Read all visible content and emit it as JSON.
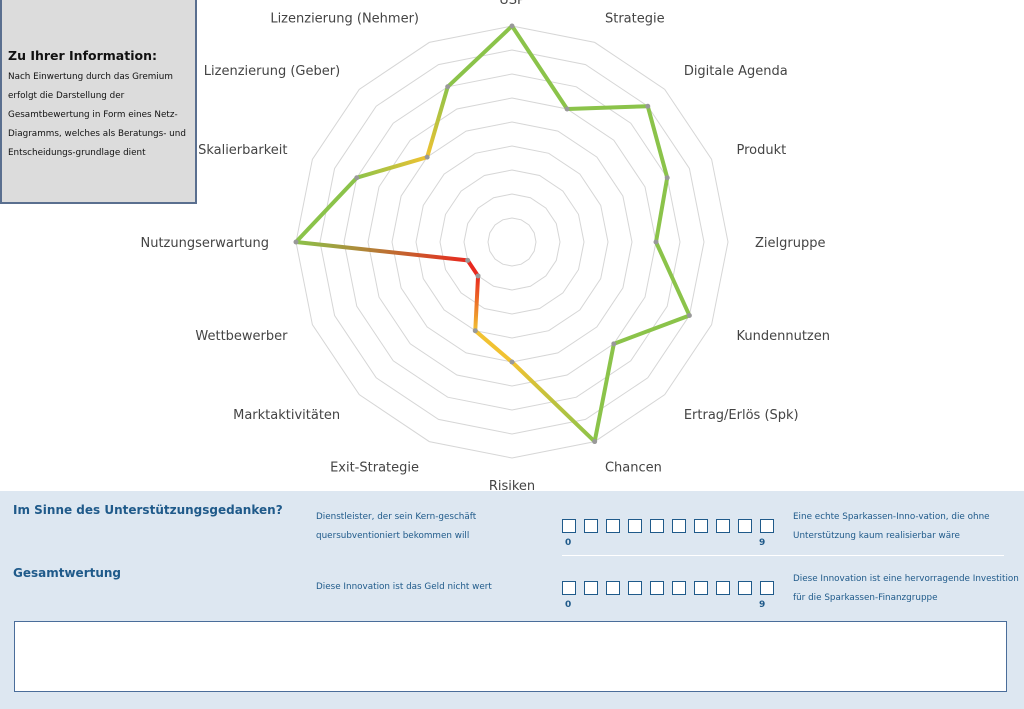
{
  "info": {
    "title": "Zu Ihrer Information:",
    "lines": [
      "Nach Einwertung durch das Gremium",
      "erfolgt die Darstellung der",
      "Gesamtbewertung in Form eines Netz-",
      "Diagramms, welches als Beratungs- und",
      "Entscheidungs-grundlage dient"
    ]
  },
  "chart_data": {
    "type": "radar",
    "scale_max": 9,
    "grid_levels": 9,
    "categories": [
      "USP",
      "Strategie",
      "Digitale Agenda",
      "Produkt",
      "Zielgruppe",
      "Kundennutzen",
      "Ertrag/Erlös (Spk)",
      "Chancen",
      "Risiken",
      "Exit-Strategie",
      "Marktaktivitäten",
      "Wettbewerber",
      "Nutzungserwartung",
      "Skalierbarkeit",
      "Lizenzierung (Geber)",
      "Lizenzierung (Nehmer)"
    ],
    "values": [
      9,
      6,
      8,
      7,
      6,
      8,
      6,
      9,
      5,
      4,
      2,
      2,
      9,
      7,
      5,
      7
    ],
    "line_colors": {
      "low": "#e8281e",
      "mid": "#f1c232",
      "high": "#8bc34a"
    }
  },
  "questions": [
    {
      "title": "Im Sinne des Unterstützungsgedanken?",
      "left_lines": [
        "Dienstleister, der sein Kern-geschäft",
        "quersubventioniert bekommen will"
      ],
      "right_lines": [
        "Eine echte Sparkassen-Inno-vation, die ohne",
        "Unterstützung kaum realisierbar wäre"
      ],
      "scale_min": "0",
      "scale_max": "9"
    },
    {
      "title": "Gesamtwertung",
      "left_lines": [
        "Diese Innovation ist das Geld nicht wert"
      ],
      "right_lines": [
        "Diese Innovation ist eine hervorragende Investition",
        "für die Sparkassen-Finanzgruppe"
      ],
      "scale_min": "0",
      "scale_max": "9"
    }
  ],
  "comment": {
    "value": ""
  }
}
